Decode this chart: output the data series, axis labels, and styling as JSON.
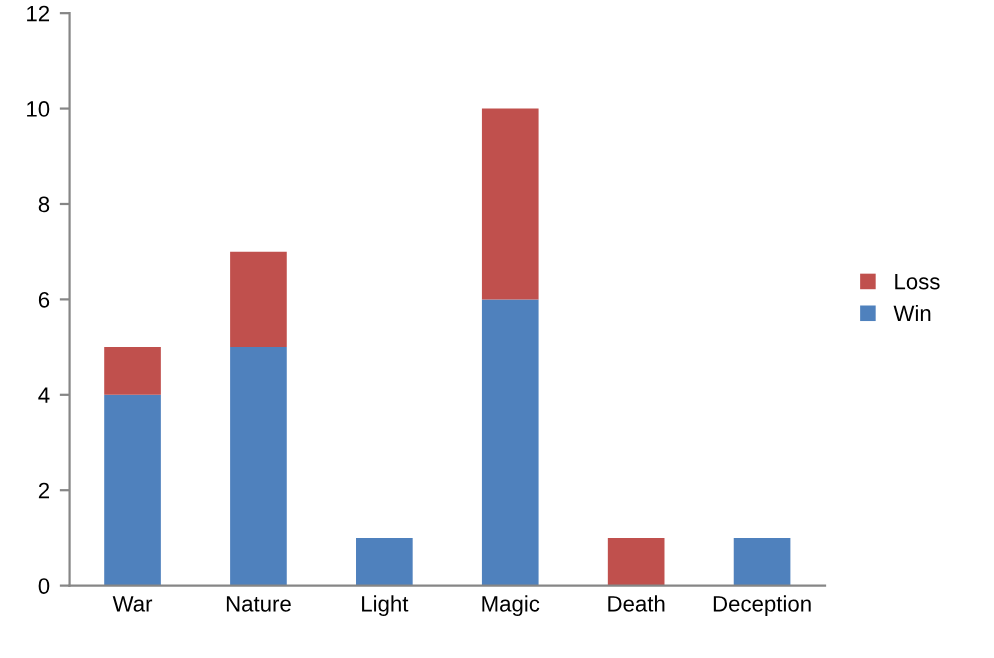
{
  "chart_data": {
    "type": "bar",
    "stacked": true,
    "categories": [
      "War",
      "Nature",
      "Light",
      "Magic",
      "Death",
      "Deception"
    ],
    "series": [
      {
        "name": "Win",
        "color": "#4f81bd",
        "values": [
          4,
          5,
          1,
          6,
          0,
          1
        ]
      },
      {
        "name": "Loss",
        "color": "#c0504d",
        "values": [
          1,
          2,
          0,
          4,
          1,
          0
        ]
      }
    ],
    "ylim": [
      0,
      12
    ],
    "yticks": [
      0,
      2,
      4,
      6,
      8,
      10,
      12
    ],
    "grid": false,
    "legend": "right"
  }
}
